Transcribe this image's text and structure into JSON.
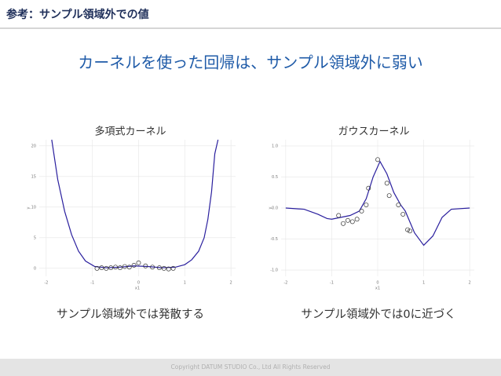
{
  "header": "参考：サンプル領域外での値",
  "heading": "カーネルを使った回帰は、サンプル領域外に弱い",
  "footer": "Copyright DATUM STUDIO Co., Ltd All Rights Reserved",
  "chart_data": [
    {
      "type": "line",
      "title": "多項式カーネル",
      "caption": "サンプル領域外では発散する",
      "xlabel": "x1",
      "ylabel": "y",
      "grid": true,
      "xlim": [
        -2.15,
        2.1
      ],
      "ylim": [
        -1.3,
        21
      ],
      "xticks": [
        -2,
        -1,
        0,
        1,
        2
      ],
      "yticks": [
        0,
        5,
        10,
        15,
        20
      ],
      "series": [
        {
          "kind": "line",
          "color": "#2a1f9e",
          "x": [
            -1.88,
            -1.75,
            -1.6,
            -1.45,
            -1.3,
            -1.15,
            -0.95,
            -0.7,
            -0.4,
            -0.1,
            0.2,
            0.5,
            0.8,
            1.0,
            1.15,
            1.3,
            1.42,
            1.5,
            1.58,
            1.65,
            1.72
          ],
          "values": [
            21,
            14.5,
            9.3,
            5.5,
            2.8,
            1.2,
            0.3,
            0.1,
            0.2,
            0.4,
            0.3,
            0.1,
            0.2,
            0.6,
            1.4,
            2.8,
            5.0,
            8.0,
            12.5,
            18.7,
            21
          ]
        },
        {
          "kind": "points",
          "color": "#333333",
          "x": [
            -0.9,
            -0.8,
            -0.7,
            -0.6,
            -0.5,
            -0.4,
            -0.3,
            -0.2,
            -0.1,
            0.0,
            0.15,
            0.3,
            0.45,
            0.55,
            0.65,
            0.75
          ],
          "values": [
            0.0,
            0.1,
            0.0,
            0.1,
            0.2,
            0.1,
            0.3,
            0.2,
            0.5,
            0.9,
            0.4,
            0.2,
            0.1,
            0.0,
            -0.1,
            0.0
          ]
        }
      ]
    },
    {
      "type": "line",
      "title": "ガウスカーネル",
      "caption": "サンプル領域外では0に近づく",
      "xlabel": "x1",
      "ylabel": "y",
      "grid": true,
      "xlim": [
        -2.1,
        2.1
      ],
      "ylim": [
        -1.1,
        1.1
      ],
      "xticks": [
        -2,
        -1,
        0,
        1,
        2
      ],
      "yticks": [
        {
          "value": 1,
          "label": "1.0"
        },
        0.5,
        {
          "value": 0,
          "label": "0.0"
        },
        -0.5,
        {
          "value": -1,
          "label": "-1.0"
        }
      ],
      "series": [
        {
          "kind": "line",
          "color": "#2a1f9e",
          "x": [
            -2.0,
            -1.6,
            -1.3,
            -1.1,
            -1.0,
            -0.8,
            -0.6,
            -0.4,
            -0.25,
            -0.1,
            0.05,
            0.2,
            0.35,
            0.5,
            0.6,
            0.8,
            1.0,
            1.2,
            1.4,
            1.6,
            2.0
          ],
          "values": [
            0.0,
            -0.02,
            -0.1,
            -0.17,
            -0.18,
            -0.15,
            -0.12,
            -0.05,
            0.15,
            0.5,
            0.75,
            0.55,
            0.25,
            0.05,
            -0.05,
            -0.4,
            -0.6,
            -0.45,
            -0.15,
            -0.02,
            0.0
          ]
        },
        {
          "kind": "points",
          "color": "#333333",
          "x": [
            -0.85,
            -0.75,
            -0.65,
            -0.55,
            -0.45,
            -0.35,
            -0.25,
            -0.2,
            0.0,
            0.2,
            0.25,
            0.45,
            0.55,
            0.65,
            0.7
          ],
          "values": [
            -0.12,
            -0.25,
            -0.2,
            -0.22,
            -0.18,
            -0.05,
            0.05,
            0.32,
            0.78,
            0.4,
            0.2,
            0.05,
            -0.1,
            -0.35,
            -0.37
          ]
        }
      ]
    }
  ]
}
